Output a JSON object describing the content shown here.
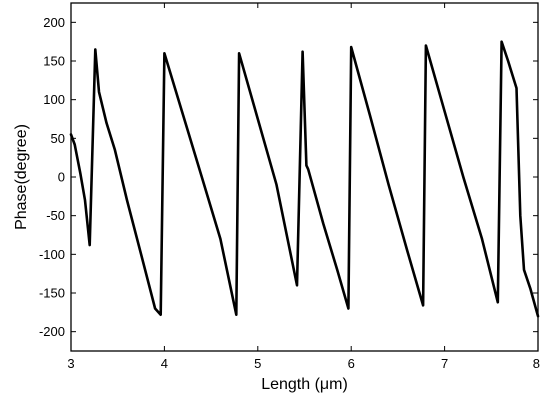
{
  "chart_data": {
    "type": "line",
    "title": "",
    "xlabel": "Length (μm)",
    "ylabel": "Phase(degree)",
    "xlim": [
      3,
      8
    ],
    "ylim": [
      -225,
      225
    ],
    "xticks": [
      3,
      4,
      5,
      6,
      7,
      8
    ],
    "yticks": [
      -200,
      -150,
      -100,
      -50,
      0,
      50,
      100,
      150,
      200
    ],
    "grid": false,
    "legend": "none",
    "series": [
      {
        "color": "#000000",
        "x": [
          3.0,
          3.04,
          3.1,
          3.15,
          3.2,
          3.26,
          3.3,
          3.38,
          3.47,
          3.6,
          3.75,
          3.9,
          3.96,
          4.0,
          4.2,
          4.4,
          4.6,
          4.77,
          4.8,
          5.0,
          5.2,
          5.42,
          5.48,
          5.52,
          5.54,
          5.7,
          5.85,
          5.97,
          6.0,
          6.2,
          6.4,
          6.6,
          6.77,
          6.8,
          7.0,
          7.2,
          7.4,
          7.57,
          7.61,
          7.68,
          7.77,
          7.81,
          7.85,
          7.92,
          8.0
        ],
        "y": [
          55,
          42,
          5,
          -30,
          -88,
          165,
          110,
          70,
          35,
          -30,
          -100,
          -170,
          -178,
          160,
          80,
          0,
          -80,
          -178,
          160,
          75,
          -10,
          -140,
          162,
          15,
          10,
          -60,
          -120,
          -170,
          168,
          80,
          -10,
          -95,
          -166,
          170,
          85,
          0,
          -80,
          -162,
          175,
          150,
          115,
          -50,
          -120,
          -145,
          -180
        ]
      }
    ]
  }
}
